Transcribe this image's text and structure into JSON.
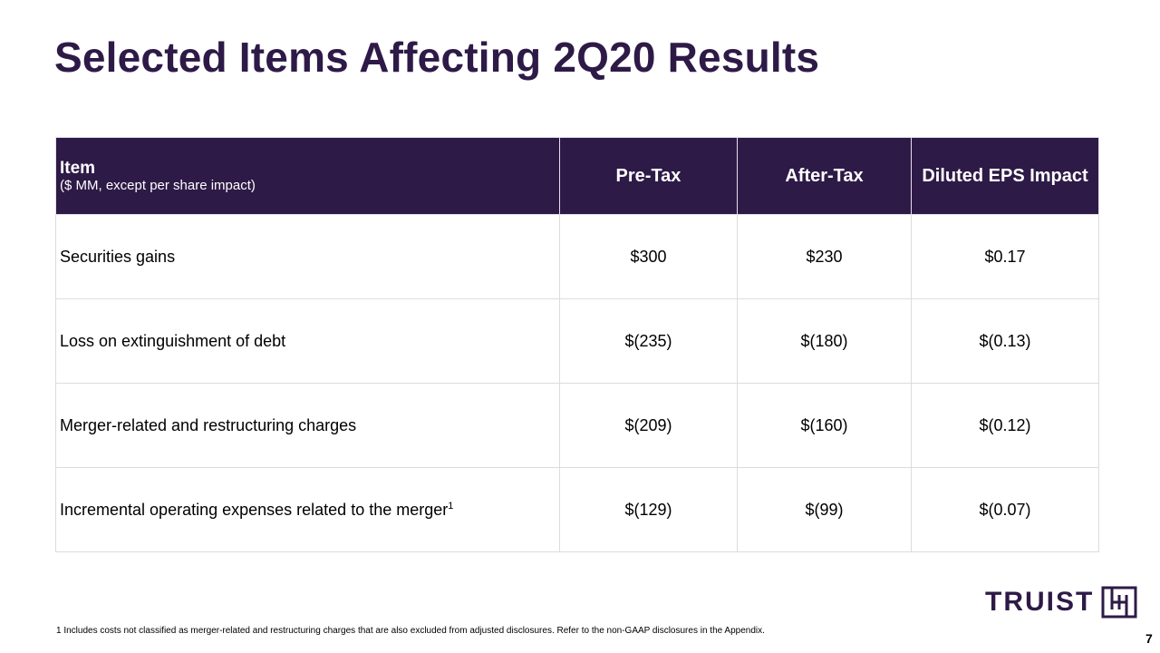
{
  "title": "Selected Items Affecting 2Q20 Results",
  "table": {
    "header": {
      "item": "Item",
      "item_sub": "($ MM, except per share impact)",
      "pre_tax": "Pre-Tax",
      "after_tax": "After-Tax",
      "eps": "Diluted EPS Impact"
    },
    "rows": [
      {
        "label": "Securities gains",
        "sup": "",
        "pre_tax": "$300",
        "after_tax": "$230",
        "eps": "$0.17"
      },
      {
        "label": "Loss on extinguishment of debt",
        "sup": "",
        "pre_tax": "$(235)",
        "after_tax": "$(180)",
        "eps": "$(0.13)"
      },
      {
        "label": "Merger-related and restructuring charges",
        "sup": "",
        "pre_tax": "$(209)",
        "after_tax": "$(160)",
        "eps": "$(0.12)"
      },
      {
        "label": "Incremental operating expenses related to the merger",
        "sup": "1",
        "pre_tax": "$(129)",
        "after_tax": "$(99)",
        "eps": "$(0.07)"
      }
    ]
  },
  "footnote": "1  Includes costs not classified as merger-related and restructuring charges that are also excluded from adjusted disclosures. Refer to the non-GAAP disclosures in the Appendix.",
  "logo": {
    "text": "TRUIST",
    "icon": "truist-logo-mark-icon"
  },
  "page_number": "7",
  "colors": {
    "brand": "#2e1a47"
  }
}
